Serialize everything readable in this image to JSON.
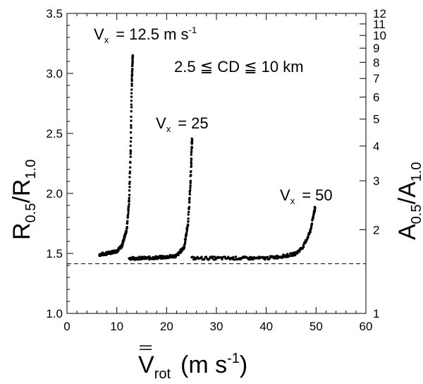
{
  "chart_data": {
    "type": "scatter",
    "x_axis": {
      "label_main": "V",
      "label_sub": "rot",
      "label_units": "(m s",
      "label_units_exp": "-1",
      "label_units_close": ")",
      "lim": [
        0,
        60
      ],
      "ticks": [
        0,
        10,
        20,
        30,
        40,
        50,
        60
      ],
      "tick_labels": [
        "0",
        "10",
        "20",
        "30",
        "40",
        "50",
        "60"
      ]
    },
    "y_axis_left": {
      "label_main": "R",
      "label_sub1": "0.5",
      "label_slash": "/",
      "label_main2": "R",
      "label_sub2": "1.0",
      "lim": [
        1.0,
        3.5
      ],
      "ticks": [
        1.0,
        1.5,
        2.0,
        2.5,
        3.0,
        3.5
      ],
      "tick_labels": [
        "1.0",
        "1.5",
        "2.0",
        "2.5",
        "3.0",
        "3.5"
      ]
    },
    "y_axis_right": {
      "label_main": "A",
      "label_sub1": "0.5",
      "label_slash": "/",
      "label_main2": "A",
      "label_sub2": "1.0",
      "scale": "log",
      "lim": [
        1,
        12
      ],
      "ticks": [
        1,
        2,
        3,
        4,
        5,
        6,
        7,
        8,
        9,
        10,
        11,
        12
      ],
      "tick_labels": [
        "1",
        "2",
        "3",
        "4",
        "5",
        "6",
        "7",
        "8",
        "9",
        "10",
        "11",
        "12"
      ]
    },
    "reference_line": {
      "y": 1.414,
      "style": "dashed"
    },
    "annotations": {
      "cd_range": "2.5 ≦ CD ≦ 10 km",
      "a1_v": "V",
      "a1_sub": "x",
      "a1_rest": "= 12.5 m s",
      "a1_exp": "-1",
      "a2_v": "V",
      "a2_sub": "x",
      "a2_rest": "= 25",
      "a3_v": "V",
      "a3_sub": "x",
      "a3_rest": "= 50"
    },
    "series": [
      {
        "x_start": 6.3,
        "x_end": 13.4,
        "base": 1.49,
        "peak_x": 13.1,
        "peak_y": 3.15,
        "sample_x": [
          6.5,
          8,
          10,
          11,
          12,
          12.5,
          12.8,
          13.0,
          13.2
        ],
        "sample_y": [
          1.49,
          1.5,
          1.52,
          1.56,
          1.7,
          1.95,
          2.4,
          2.9,
          3.15
        ]
      },
      {
        "x_start": 12.3,
        "x_end": 25.6,
        "base": 1.46,
        "peak_x": 25.1,
        "peak_y": 2.45,
        "sample_x": [
          12.5,
          16,
          20,
          22,
          23.5,
          24.3,
          24.8,
          25.1
        ],
        "sample_y": [
          1.46,
          1.46,
          1.47,
          1.48,
          1.55,
          1.75,
          2.1,
          2.45
        ]
      },
      {
        "x_start": 24.8,
        "x_end": 50.5,
        "base": 1.46,
        "peak_x": 49.8,
        "peak_y": 1.88,
        "sample_x": [
          25,
          30,
          35,
          40,
          44,
          46,
          47.5,
          48.8,
          49.8
        ],
        "sample_y": [
          1.46,
          1.46,
          1.46,
          1.46,
          1.48,
          1.5,
          1.56,
          1.68,
          1.88
        ]
      }
    ]
  }
}
